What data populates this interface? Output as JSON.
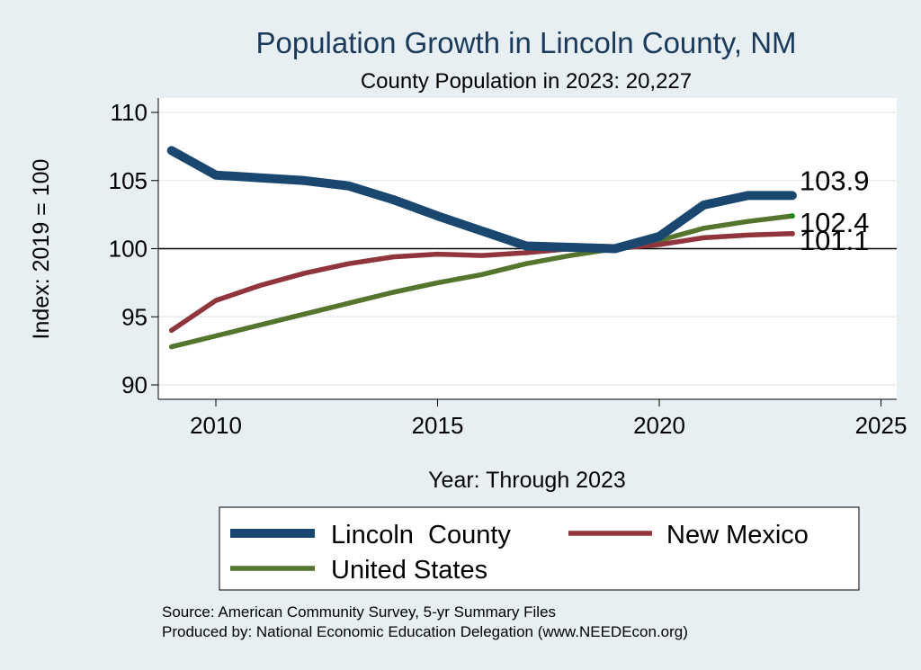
{
  "chart_data": {
    "type": "line",
    "title": "Population Growth in Lincoln County, NM",
    "subtitle": "County Population in 2023: 20,227",
    "xlabel": "Year: Through 2023",
    "ylabel": "Index: 2019 = 100",
    "xlim": [
      2009,
      2025
    ],
    "ylim": [
      89,
      110
    ],
    "xticks": [
      2010,
      2015,
      2020,
      2025
    ],
    "yticks": [
      90,
      95,
      100,
      105,
      110
    ],
    "reference_line": 100,
    "grid": true,
    "legend_position": "bottom",
    "x": [
      2009,
      2010,
      2011,
      2012,
      2013,
      2014,
      2015,
      2016,
      2017,
      2018,
      2019,
      2020,
      2021,
      2022,
      2023
    ],
    "series": [
      {
        "name": "Lincoln  County",
        "color": "#1a476f",
        "values": [
          107.2,
          105.4,
          105.2,
          105.0,
          104.6,
          103.6,
          102.4,
          101.3,
          100.2,
          100.1,
          100.0,
          100.9,
          103.2,
          103.9,
          103.9
        ],
        "end_label": "103.9"
      },
      {
        "name": "New Mexico",
        "color": "#90353b",
        "values": [
          94.0,
          96.2,
          97.3,
          98.2,
          98.9,
          99.4,
          99.6,
          99.5,
          99.7,
          100.0,
          100.0,
          100.3,
          100.8,
          101.0,
          101.1
        ],
        "end_label": "101.1"
      },
      {
        "name": "United States",
        "color": "#55752f",
        "values": [
          92.8,
          93.6,
          94.4,
          95.2,
          96.0,
          96.8,
          97.5,
          98.1,
          98.9,
          99.5,
          100.0,
          100.6,
          101.5,
          102.0,
          102.4
        ],
        "end_label": "102.4"
      }
    ]
  },
  "footer": {
    "source": "Source: American Community Survey, 5-yr Summary Files",
    "produced_by": "Produced by: National Economic Education Delegation (www.NEEDEcon.org)"
  }
}
